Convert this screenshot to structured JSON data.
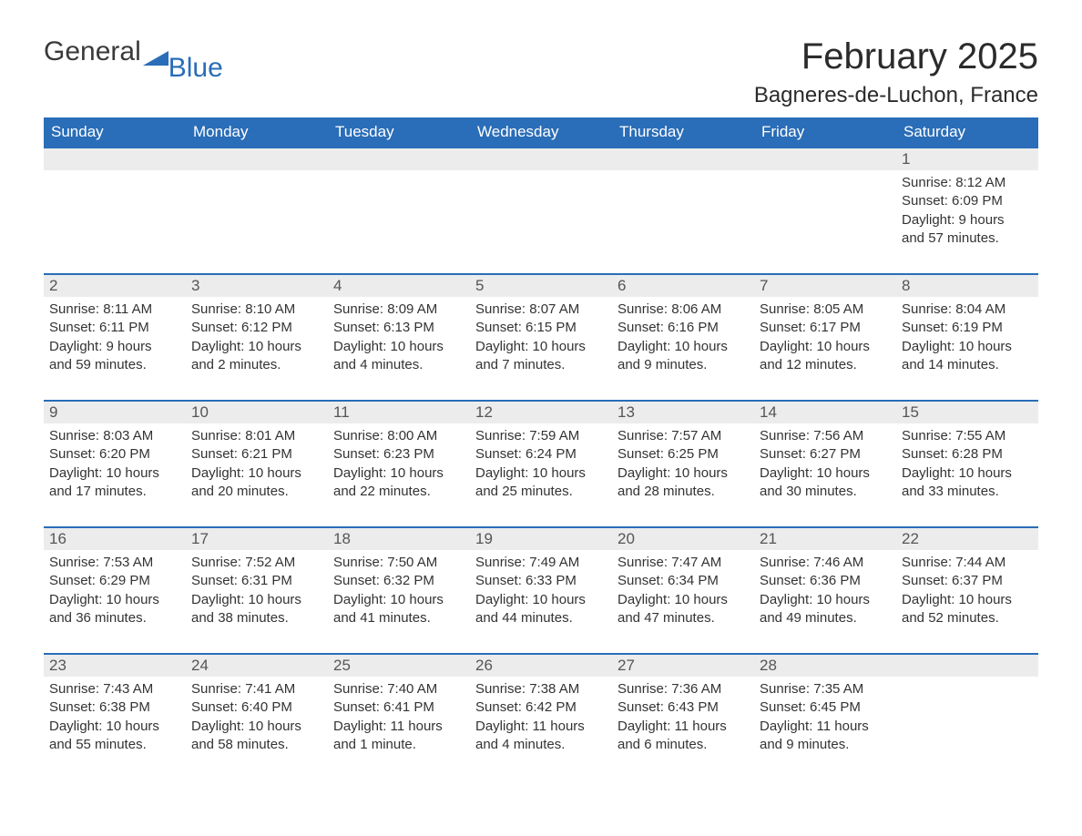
{
  "logo": {
    "text1": "General",
    "text2": "Blue",
    "mark_color": "#2a6db8"
  },
  "title": "February 2025",
  "location": "Bagneres-de-Luchon, France",
  "colors": {
    "header_bg": "#2a6db8",
    "header_text": "#ffffff",
    "daynum_bg": "#ececec",
    "week_border": "#2a6db8",
    "text": "#333333",
    "background": "#ffffff"
  },
  "fonts": {
    "title_pt": 40,
    "location_pt": 24,
    "dayhead_pt": 17,
    "daynum_pt": 17,
    "body_pt": 15
  },
  "day_headers": [
    "Sunday",
    "Monday",
    "Tuesday",
    "Wednesday",
    "Thursday",
    "Friday",
    "Saturday"
  ],
  "weeks": [
    [
      null,
      null,
      null,
      null,
      null,
      null,
      {
        "n": "1",
        "sunrise": "Sunrise: 8:12 AM",
        "sunset": "Sunset: 6:09 PM",
        "day1": "Daylight: 9 hours",
        "day2": "and 57 minutes."
      }
    ],
    [
      {
        "n": "2",
        "sunrise": "Sunrise: 8:11 AM",
        "sunset": "Sunset: 6:11 PM",
        "day1": "Daylight: 9 hours",
        "day2": "and 59 minutes."
      },
      {
        "n": "3",
        "sunrise": "Sunrise: 8:10 AM",
        "sunset": "Sunset: 6:12 PM",
        "day1": "Daylight: 10 hours",
        "day2": "and 2 minutes."
      },
      {
        "n": "4",
        "sunrise": "Sunrise: 8:09 AM",
        "sunset": "Sunset: 6:13 PM",
        "day1": "Daylight: 10 hours",
        "day2": "and 4 minutes."
      },
      {
        "n": "5",
        "sunrise": "Sunrise: 8:07 AM",
        "sunset": "Sunset: 6:15 PM",
        "day1": "Daylight: 10 hours",
        "day2": "and 7 minutes."
      },
      {
        "n": "6",
        "sunrise": "Sunrise: 8:06 AM",
        "sunset": "Sunset: 6:16 PM",
        "day1": "Daylight: 10 hours",
        "day2": "and 9 minutes."
      },
      {
        "n": "7",
        "sunrise": "Sunrise: 8:05 AM",
        "sunset": "Sunset: 6:17 PM",
        "day1": "Daylight: 10 hours",
        "day2": "and 12 minutes."
      },
      {
        "n": "8",
        "sunrise": "Sunrise: 8:04 AM",
        "sunset": "Sunset: 6:19 PM",
        "day1": "Daylight: 10 hours",
        "day2": "and 14 minutes."
      }
    ],
    [
      {
        "n": "9",
        "sunrise": "Sunrise: 8:03 AM",
        "sunset": "Sunset: 6:20 PM",
        "day1": "Daylight: 10 hours",
        "day2": "and 17 minutes."
      },
      {
        "n": "10",
        "sunrise": "Sunrise: 8:01 AM",
        "sunset": "Sunset: 6:21 PM",
        "day1": "Daylight: 10 hours",
        "day2": "and 20 minutes."
      },
      {
        "n": "11",
        "sunrise": "Sunrise: 8:00 AM",
        "sunset": "Sunset: 6:23 PM",
        "day1": "Daylight: 10 hours",
        "day2": "and 22 minutes."
      },
      {
        "n": "12",
        "sunrise": "Sunrise: 7:59 AM",
        "sunset": "Sunset: 6:24 PM",
        "day1": "Daylight: 10 hours",
        "day2": "and 25 minutes."
      },
      {
        "n": "13",
        "sunrise": "Sunrise: 7:57 AM",
        "sunset": "Sunset: 6:25 PM",
        "day1": "Daylight: 10 hours",
        "day2": "and 28 minutes."
      },
      {
        "n": "14",
        "sunrise": "Sunrise: 7:56 AM",
        "sunset": "Sunset: 6:27 PM",
        "day1": "Daylight: 10 hours",
        "day2": "and 30 minutes."
      },
      {
        "n": "15",
        "sunrise": "Sunrise: 7:55 AM",
        "sunset": "Sunset: 6:28 PM",
        "day1": "Daylight: 10 hours",
        "day2": "and 33 minutes."
      }
    ],
    [
      {
        "n": "16",
        "sunrise": "Sunrise: 7:53 AM",
        "sunset": "Sunset: 6:29 PM",
        "day1": "Daylight: 10 hours",
        "day2": "and 36 minutes."
      },
      {
        "n": "17",
        "sunrise": "Sunrise: 7:52 AM",
        "sunset": "Sunset: 6:31 PM",
        "day1": "Daylight: 10 hours",
        "day2": "and 38 minutes."
      },
      {
        "n": "18",
        "sunrise": "Sunrise: 7:50 AM",
        "sunset": "Sunset: 6:32 PM",
        "day1": "Daylight: 10 hours",
        "day2": "and 41 minutes."
      },
      {
        "n": "19",
        "sunrise": "Sunrise: 7:49 AM",
        "sunset": "Sunset: 6:33 PM",
        "day1": "Daylight: 10 hours",
        "day2": "and 44 minutes."
      },
      {
        "n": "20",
        "sunrise": "Sunrise: 7:47 AM",
        "sunset": "Sunset: 6:34 PM",
        "day1": "Daylight: 10 hours",
        "day2": "and 47 minutes."
      },
      {
        "n": "21",
        "sunrise": "Sunrise: 7:46 AM",
        "sunset": "Sunset: 6:36 PM",
        "day1": "Daylight: 10 hours",
        "day2": "and 49 minutes."
      },
      {
        "n": "22",
        "sunrise": "Sunrise: 7:44 AM",
        "sunset": "Sunset: 6:37 PM",
        "day1": "Daylight: 10 hours",
        "day2": "and 52 minutes."
      }
    ],
    [
      {
        "n": "23",
        "sunrise": "Sunrise: 7:43 AM",
        "sunset": "Sunset: 6:38 PM",
        "day1": "Daylight: 10 hours",
        "day2": "and 55 minutes."
      },
      {
        "n": "24",
        "sunrise": "Sunrise: 7:41 AM",
        "sunset": "Sunset: 6:40 PM",
        "day1": "Daylight: 10 hours",
        "day2": "and 58 minutes."
      },
      {
        "n": "25",
        "sunrise": "Sunrise: 7:40 AM",
        "sunset": "Sunset: 6:41 PM",
        "day1": "Daylight: 11 hours",
        "day2": "and 1 minute."
      },
      {
        "n": "26",
        "sunrise": "Sunrise: 7:38 AM",
        "sunset": "Sunset: 6:42 PM",
        "day1": "Daylight: 11 hours",
        "day2": "and 4 minutes."
      },
      {
        "n": "27",
        "sunrise": "Sunrise: 7:36 AM",
        "sunset": "Sunset: 6:43 PM",
        "day1": "Daylight: 11 hours",
        "day2": "and 6 minutes."
      },
      {
        "n": "28",
        "sunrise": "Sunrise: 7:35 AM",
        "sunset": "Sunset: 6:45 PM",
        "day1": "Daylight: 11 hours",
        "day2": "and 9 minutes."
      },
      null
    ]
  ]
}
